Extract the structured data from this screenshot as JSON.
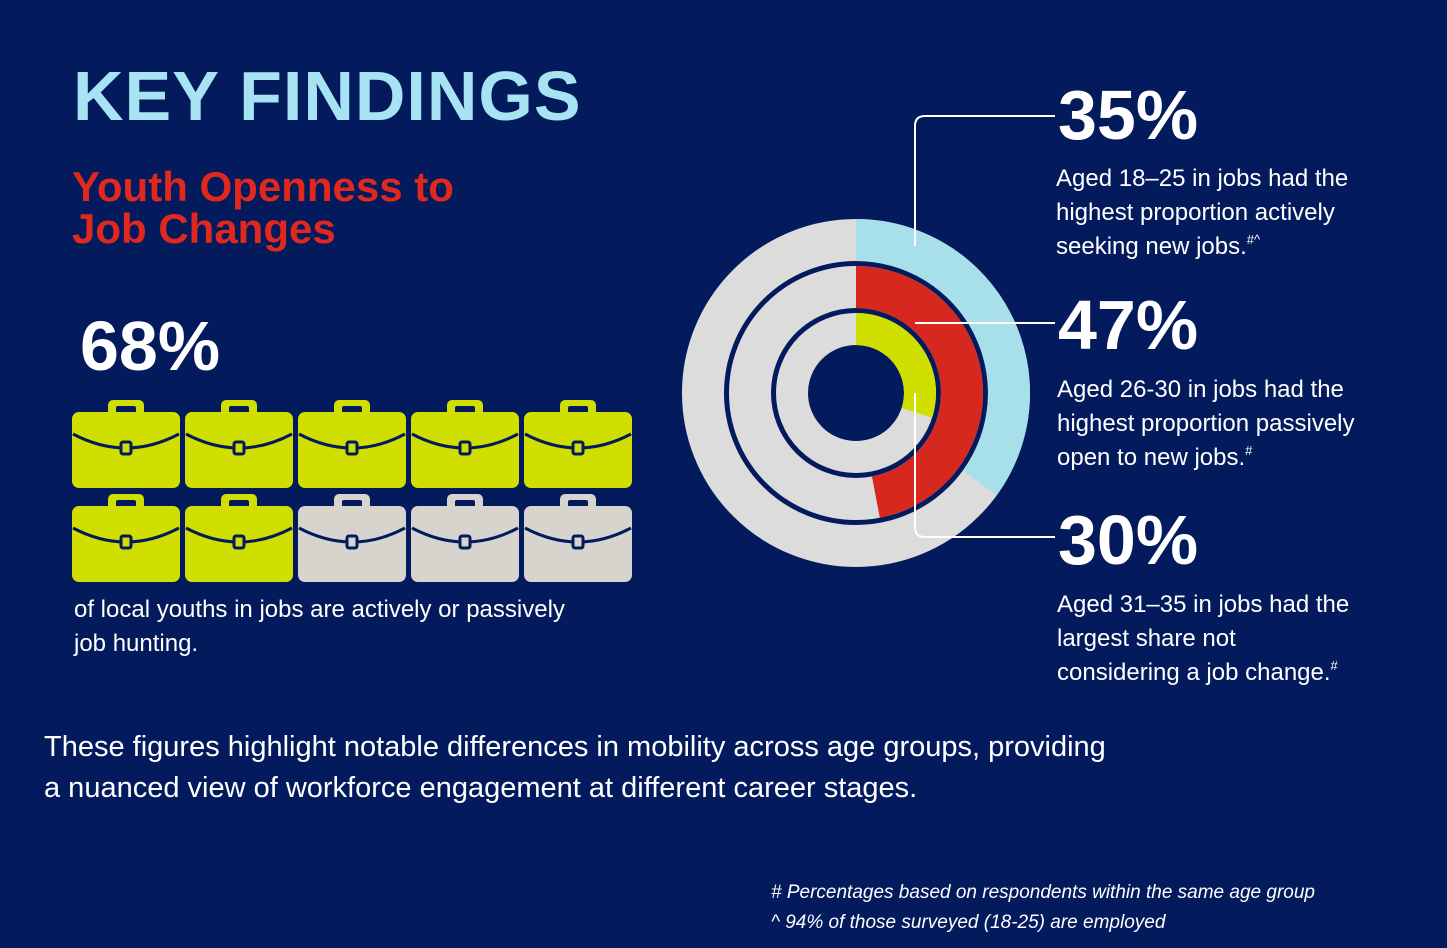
{
  "title": "KEY FINDINGS",
  "subtitle_lines": [
    "Youth Openness to",
    "Job Changes"
  ],
  "stat": {
    "value": "68%",
    "caption_lines": [
      "of local youths in jobs are actively or passively",
      "job hunting."
    ]
  },
  "callouts": [
    {
      "value": "35%",
      "lines": [
        "Aged 18–25 in jobs had the",
        "highest proportion actively",
        "seeking new jobs."
      ],
      "mark": "#^"
    },
    {
      "value": "47%",
      "lines": [
        "Aged 26-30 in jobs had the",
        "highest proportion passively",
        "open to new jobs."
      ],
      "mark": "#"
    },
    {
      "value": "30%",
      "lines": [
        "Aged 31–35 in jobs had the",
        "largest share not",
        "considering a job change."
      ],
      "mark": "#"
    }
  ],
  "closing_lines": [
    "These figures highlight notable differences in mobility across age groups, providing",
    "a nuanced view of workforce engagement at different career stages."
  ],
  "footnotes": [
    "# Percentages based on respondents within the same age group",
    "^ 94% of those surveyed (18-25) are employed"
  ],
  "colors": {
    "background": "#031b5c",
    "title": "#a7e3f2",
    "subtitle": "#e0281f",
    "ring_outer": "#a7dfea",
    "ring_middle": "#d6281f",
    "ring_inner": "#d0de00",
    "ring_track": "#dcdcdc",
    "icon_filled": "#d0de00",
    "icon_empty": "#d6d4cc"
  },
  "chart_data": [
    {
      "type": "icon-array",
      "total": 10,
      "filled": 7,
      "value_percent": 68,
      "icon": "briefcase-icon"
    },
    {
      "type": "radial-bar",
      "series": [
        {
          "value": 35
        },
        {
          "value": 47
        },
        {
          "value": 30
        }
      ],
      "max": 100
    }
  ]
}
